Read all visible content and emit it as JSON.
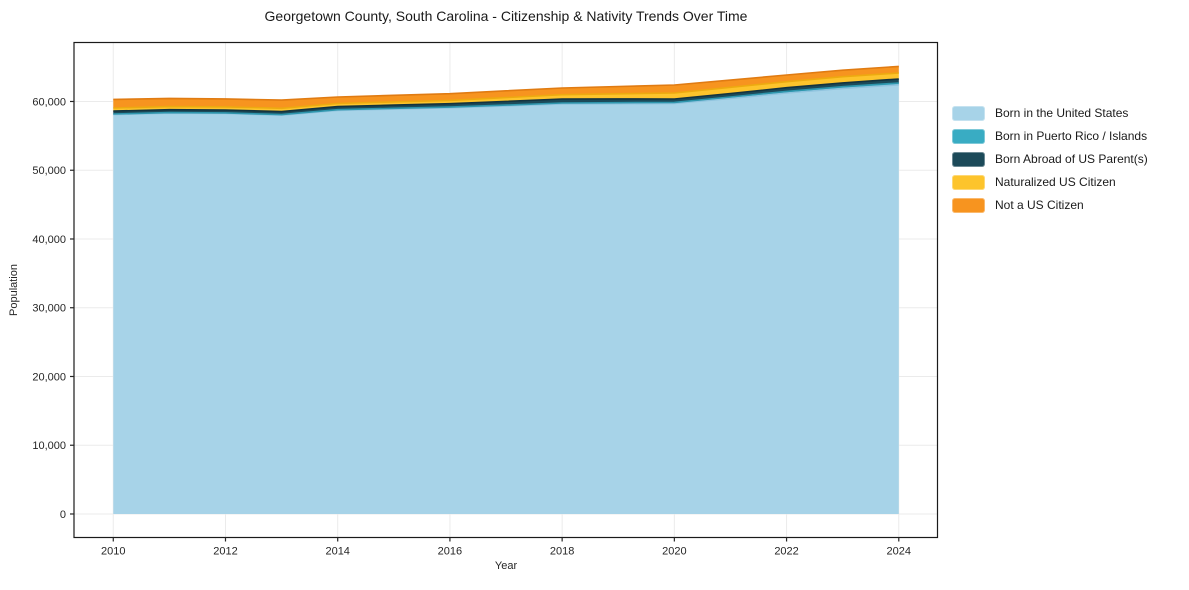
{
  "chart_data": {
    "type": "area",
    "stacked": true,
    "title": "Georgetown County, South Carolina - Citizenship & Nativity Trends Over Time",
    "xlabel": "Year",
    "ylabel": "Population",
    "x": [
      2010,
      2011,
      2012,
      2013,
      2014,
      2015,
      2016,
      2017,
      2018,
      2019,
      2020,
      2021,
      2022,
      2023,
      2024
    ],
    "series": [
      {
        "id": "born-us",
        "name": "Born in the United States",
        "color": "#a7d3e8",
        "edge_color": "#8fc3de",
        "values": [
          58100,
          58300,
          58250,
          58000,
          58700,
          58900,
          59080,
          59360,
          59650,
          59680,
          59700,
          60450,
          61240,
          61900,
          62430
        ]
      },
      {
        "id": "born-pr-islands",
        "name": "Born in Puerto Rico / Islands",
        "color": "#39acc3",
        "edge_color": "#2e96ad",
        "values": [
          80,
          85,
          90,
          95,
          100,
          105,
          110,
          120,
          130,
          150,
          170,
          200,
          230,
          245,
          260
        ]
      },
      {
        "id": "born-abroad",
        "name": "Born Abroad of US Parent(s)",
        "color": "#1c4a59",
        "edge_color": "#14333f",
        "values": [
          420,
          420,
          420,
          430,
          460,
          470,
          490,
          530,
          580,
          540,
          490,
          510,
          530,
          560,
          580
        ]
      },
      {
        "id": "naturalized",
        "name": "Naturalized US Citizen",
        "color": "#fdc42c",
        "edge_color": "#edaa10",
        "values": [
          450,
          450,
          460,
          480,
          440,
          460,
          480,
          560,
          630,
          750,
          880,
          900,
          880,
          900,
          870
        ]
      },
      {
        "id": "not-citizen",
        "name": "Not a US Citizen",
        "color": "#f7941f",
        "edge_color": "#e07b12",
        "values": [
          1250,
          1200,
          1150,
          1200,
          950,
          960,
          980,
          980,
          970,
          1060,
          1160,
          1050,
          970,
          950,
          970
        ]
      }
    ],
    "xticks": [
      2010,
      2012,
      2014,
      2016,
      2018,
      2020,
      2022,
      2024
    ],
    "xtick_labels": [
      "2010",
      "2012",
      "2014",
      "2016",
      "2018",
      "2020",
      "2022",
      "2024"
    ],
    "yticks": [
      0,
      10000,
      20000,
      30000,
      40000,
      50000,
      60000
    ],
    "ytick_labels": [
      "0",
      "10,000",
      "20,000",
      "30,000",
      "40,000",
      "50,000",
      "60,000"
    ],
    "xlim": [
      2009.3,
      2024.69
    ],
    "ylim": [
      -3420,
      68580
    ],
    "grid": true,
    "grid_color": "#ebebeb",
    "axis_color": "#1a1a1a",
    "tick_label_color": "#262626",
    "background": "#ffffff",
    "legend_position": "right-outside"
  }
}
